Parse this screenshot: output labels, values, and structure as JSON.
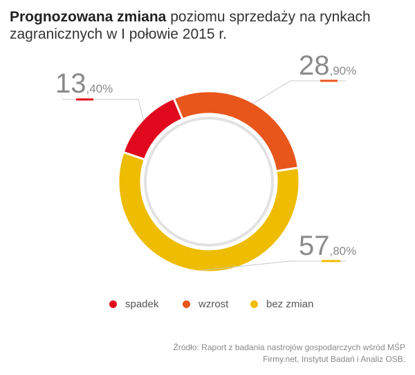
{
  "title": {
    "bold": "Prognozowana zmiana",
    "rest": " poziomu sprzedaży na rynkach zagranicznych w I połowie 2015 r."
  },
  "chart_data": {
    "type": "pie",
    "categories": [
      "spadek",
      "wzrost",
      "bez zmian"
    ],
    "values": [
      13.4,
      28.9,
      57.8
    ],
    "value_labels": [
      {
        "int": "13",
        "dec": ",40%"
      },
      {
        "int": "28",
        "dec": ",90%"
      },
      {
        "int": "57",
        "dec": ",80%"
      }
    ],
    "colors": [
      "#e0091d",
      "#e8561c",
      "#eebc00"
    ],
    "legend_position": "bottom"
  },
  "source": {
    "line1": "Źródło: Raport z badania nastrojów gospodarczych wśród MŚP",
    "line2": "Firmy.net, Instytut Badań i Analiz OSB."
  }
}
